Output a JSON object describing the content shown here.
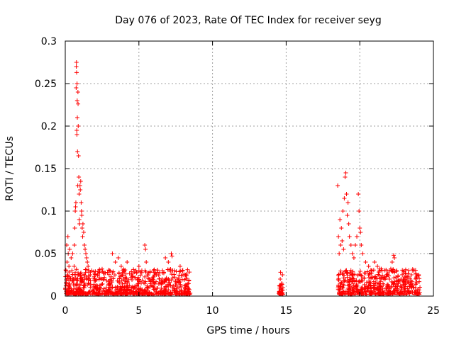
{
  "chart_data": {
    "type": "scatter",
    "title": "Day 076 of 2023, Rate Of TEC Index for receiver seyg",
    "xlabel": "GPS time / hours",
    "ylabel": "ROTI / TECUs",
    "xlim": [
      0,
      25
    ],
    "ylim": [
      0,
      0.3
    ],
    "xticks": [
      "0",
      "5",
      "10",
      "15",
      "20",
      "25"
    ],
    "yticks": [
      "0",
      "0.05",
      "0.1",
      "0.15",
      "0.2",
      "0.25",
      "0.3"
    ],
    "grid": true,
    "marker": "+",
    "color": "#ff0000",
    "points": [
      [
        0.05,
        0.03
      ],
      [
        0.08,
        0.015
      ],
      [
        0.1,
        0.06
      ],
      [
        0.12,
        0.04
      ],
      [
        0.15,
        0.025
      ],
      [
        0.18,
        0.07
      ],
      [
        0.2,
        0.05
      ],
      [
        0.25,
        0.035
      ],
      [
        0.3,
        0.055
      ],
      [
        0.35,
        0.02
      ],
      [
        0.4,
        0.045
      ],
      [
        0.45,
        0.03
      ],
      [
        0.5,
        0.05
      ],
      [
        0.55,
        0.02
      ],
      [
        0.6,
        0.035
      ],
      [
        0.62,
        0.06
      ],
      [
        0.65,
        0.08
      ],
      [
        0.68,
        0.1
      ],
      [
        0.7,
        0.105
      ],
      [
        0.72,
        0.11
      ],
      [
        0.74,
        0.245
      ],
      [
        0.75,
        0.27
      ],
      [
        0.76,
        0.275
      ],
      [
        0.77,
        0.263
      ],
      [
        0.78,
        0.195
      ],
      [
        0.79,
        0.19
      ],
      [
        0.8,
        0.25
      ],
      [
        0.81,
        0.23
      ],
      [
        0.82,
        0.21
      ],
      [
        0.83,
        0.17
      ],
      [
        0.85,
        0.13
      ],
      [
        0.86,
        0.24
      ],
      [
        0.87,
        0.226
      ],
      [
        0.88,
        0.2
      ],
      [
        0.9,
        0.165
      ],
      [
        0.92,
        0.14
      ],
      [
        0.94,
        0.12
      ],
      [
        0.95,
        0.09
      ],
      [
        0.97,
        0.085
      ],
      [
        1.0,
        0.13
      ],
      [
        1.02,
        0.125
      ],
      [
        1.05,
        0.135
      ],
      [
        1.08,
        0.11
      ],
      [
        1.1,
        0.1
      ],
      [
        1.12,
        0.095
      ],
      [
        1.15,
        0.08
      ],
      [
        1.18,
        0.07
      ],
      [
        1.2,
        0.085
      ],
      [
        1.25,
        0.075
      ],
      [
        1.3,
        0.06
      ],
      [
        1.35,
        0.055
      ],
      [
        1.4,
        0.05
      ],
      [
        1.45,
        0.045
      ],
      [
        1.5,
        0.04
      ],
      [
        1.55,
        0.035
      ],
      [
        1.6,
        0.03
      ],
      [
        1.7,
        0.025
      ],
      [
        1.8,
        0.03
      ],
      [
        2.0,
        0.02
      ],
      [
        2.2,
        0.025
      ],
      [
        2.5,
        0.02
      ],
      [
        2.8,
        0.018
      ],
      [
        3.0,
        0.03
      ],
      [
        3.2,
        0.05
      ],
      [
        3.4,
        0.04
      ],
      [
        3.6,
        0.045
      ],
      [
        3.8,
        0.035
      ],
      [
        4.0,
        0.03
      ],
      [
        4.2,
        0.04
      ],
      [
        4.5,
        0.025
      ],
      [
        4.8,
        0.03
      ],
      [
        5.0,
        0.035
      ],
      [
        5.2,
        0.03
      ],
      [
        5.4,
        0.06
      ],
      [
        5.45,
        0.055
      ],
      [
        5.5,
        0.04
      ],
      [
        5.7,
        0.02
      ],
      [
        6.0,
        0.03
      ],
      [
        6.2,
        0.025
      ],
      [
        6.4,
        0.02
      ],
      [
        6.6,
        0.03
      ],
      [
        6.8,
        0.045
      ],
      [
        7.0,
        0.04
      ],
      [
        7.2,
        0.05
      ],
      [
        7.25,
        0.047
      ],
      [
        7.4,
        0.03
      ],
      [
        7.6,
        0.02
      ],
      [
        7.8,
        0.035
      ],
      [
        8.0,
        0.025
      ],
      [
        8.2,
        0.02
      ],
      [
        8.4,
        0.018
      ],
      [
        14.55,
        0.005
      ],
      [
        14.6,
        0.02
      ],
      [
        14.62,
        0.028
      ],
      [
        14.65,
        0.008
      ],
      [
        14.7,
        0.015
      ],
      [
        14.75,
        0.025
      ],
      [
        18.5,
        0.13
      ],
      [
        18.55,
        0.07
      ],
      [
        18.6,
        0.05
      ],
      [
        18.65,
        0.09
      ],
      [
        18.7,
        0.06
      ],
      [
        18.75,
        0.08
      ],
      [
        18.8,
        0.065
      ],
      [
        18.85,
        0.1
      ],
      [
        18.9,
        0.055
      ],
      [
        18.95,
        0.115
      ],
      [
        19.0,
        0.14
      ],
      [
        19.05,
        0.145
      ],
      [
        19.1,
        0.12
      ],
      [
        19.15,
        0.095
      ],
      [
        19.2,
        0.11
      ],
      [
        19.25,
        0.085
      ],
      [
        19.3,
        0.07
      ],
      [
        19.4,
        0.06
      ],
      [
        19.5,
        0.05
      ],
      [
        19.6,
        0.045
      ],
      [
        19.7,
        0.06
      ],
      [
        19.8,
        0.07
      ],
      [
        19.9,
        0.12
      ],
      [
        19.95,
        0.1
      ],
      [
        20.0,
        0.08
      ],
      [
        20.05,
        0.075
      ],
      [
        20.1,
        0.06
      ],
      [
        20.2,
        0.05
      ],
      [
        20.4,
        0.04
      ],
      [
        20.6,
        0.035
      ],
      [
        20.8,
        0.03
      ],
      [
        21.0,
        0.04
      ],
      [
        21.2,
        0.035
      ],
      [
        21.5,
        0.03
      ],
      [
        21.8,
        0.025
      ],
      [
        22.0,
        0.03
      ],
      [
        22.2,
        0.04
      ],
      [
        22.3,
        0.048
      ],
      [
        22.35,
        0.045
      ],
      [
        22.5,
        0.03
      ],
      [
        22.8,
        0.02
      ],
      [
        23.0,
        0.018
      ],
      [
        23.2,
        0.02
      ],
      [
        23.5,
        0.025
      ],
      [
        23.6,
        0.03
      ],
      [
        23.8,
        0.02
      ],
      [
        24.0,
        0.025
      ]
    ],
    "bands": [
      {
        "x": [
          0.0,
          8.5
        ],
        "y": [
          0.0,
          0.03
        ]
      },
      {
        "x": [
          14.5,
          14.8
        ],
        "y": [
          0.0,
          0.012
        ]
      },
      {
        "x": [
          18.5,
          24.1
        ],
        "y": [
          0.0,
          0.03
        ]
      }
    ]
  }
}
